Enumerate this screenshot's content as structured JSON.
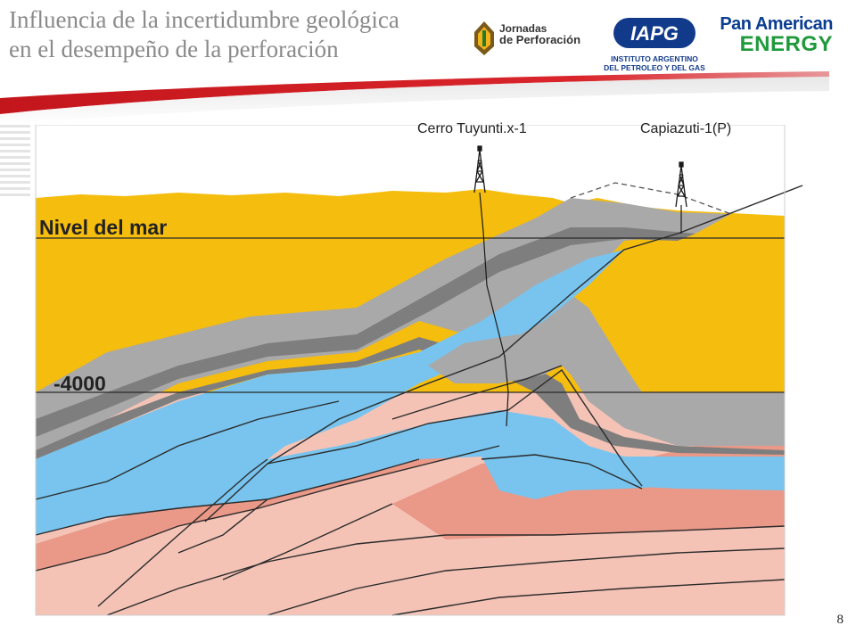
{
  "header": {
    "title_line1": "Influencia de la incertidumbre geológica",
    "title_line2": "en el desempeño de la perforación"
  },
  "logos": {
    "jornadas_line1": "Jornadas",
    "jornadas_line2": "de Perforación",
    "iapg_mark": "IAPG",
    "iapg_line1": "INSTITUTO ARGENTINO",
    "iapg_line2": "DEL PETROLEO Y DEL GAS",
    "pae_line1": "Pan American",
    "pae_line2": "ENERGY"
  },
  "section": {
    "well_left": "Cerro Tuyunti.x-1",
    "well_right": "Capiazuti-1(P)",
    "sea_level_label": "Nivel del mar",
    "depth_label": "-4000",
    "colors": {
      "surface": "#f5bd0e",
      "gray_light": "#a9a9a9",
      "gray_dark": "#7e7e7e",
      "blue": "#78c4ee",
      "salmon_dark": "#ea9887",
      "salmon_light": "#f4c3b6",
      "line": "#2a2a2a"
    }
  },
  "footer": {
    "page_number": "8"
  }
}
